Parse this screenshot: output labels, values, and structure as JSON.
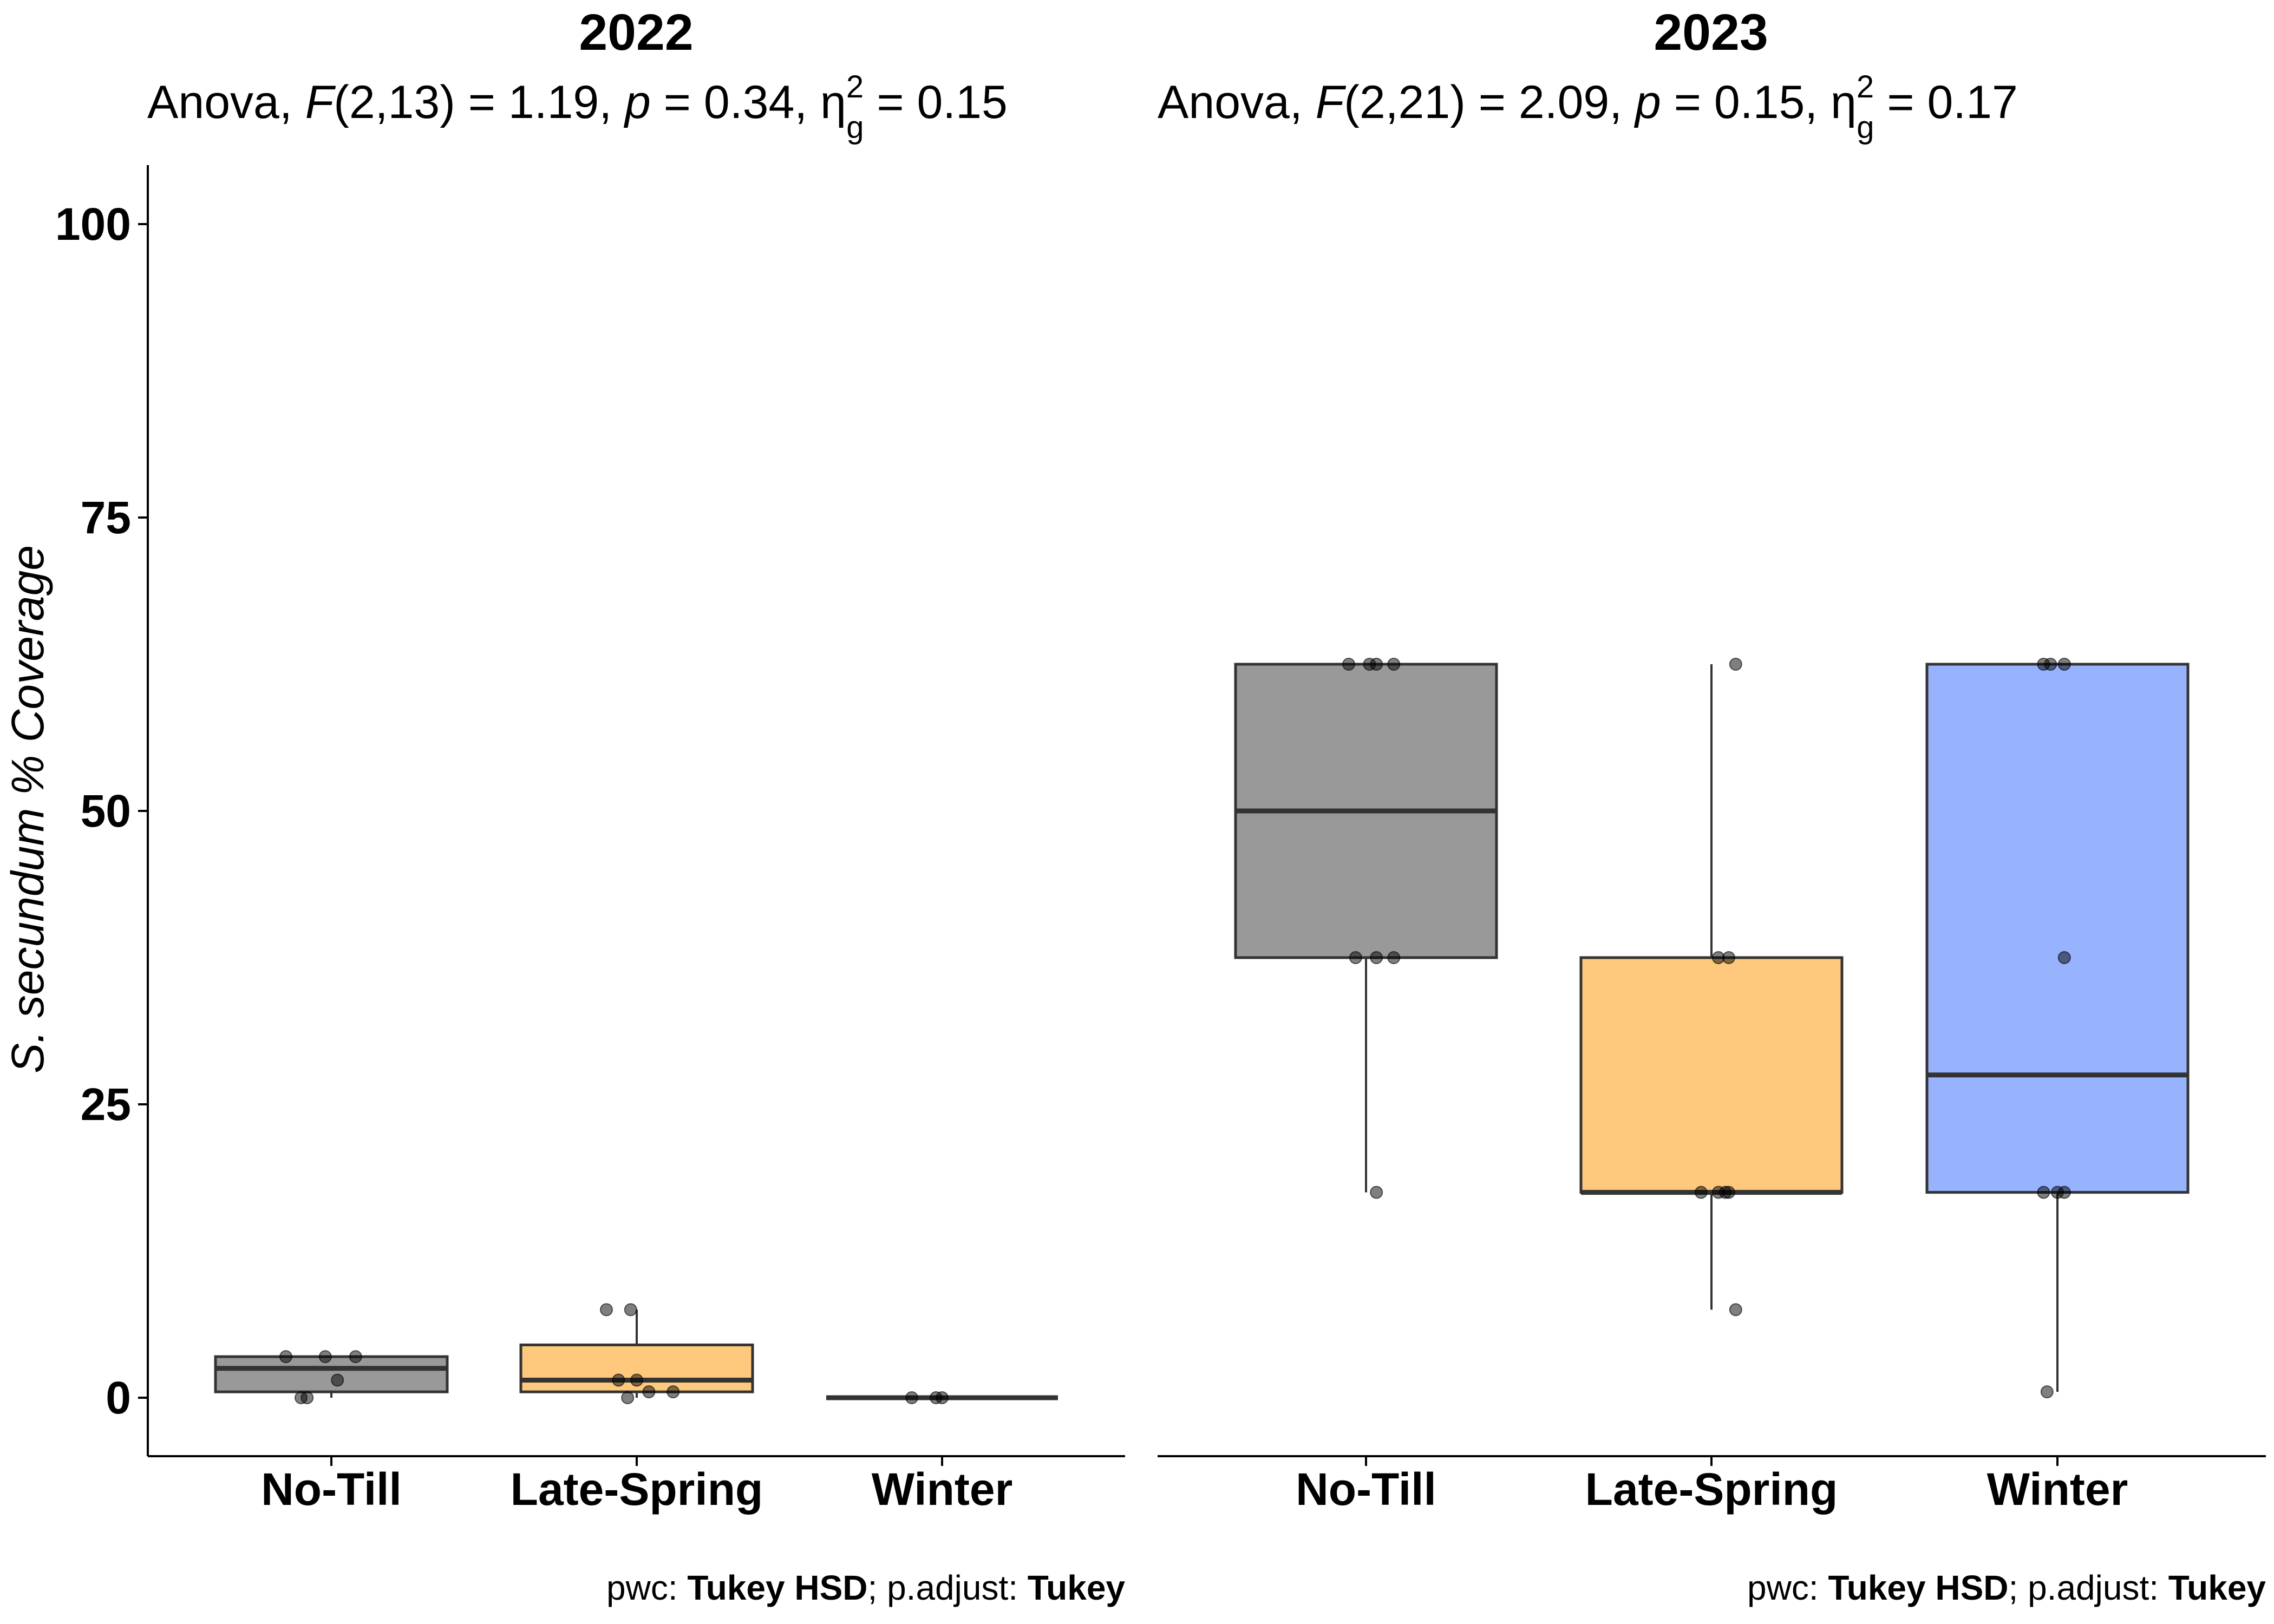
{
  "chart_data": [
    {
      "type": "box",
      "title": "2022",
      "subtitle": {
        "prefix": "Anova, ",
        "F_symbol": "F",
        "df": "(2,13)",
        "F_value": " = 1.19, ",
        "p_symbol": "p",
        "p_value": " = 0.34, ",
        "effect_symbol": "η",
        "effect_sup": "2",
        "effect_sub": "g",
        "effect_value": " = 0.15"
      },
      "caption": {
        "pwc_label": "pwc: ",
        "pwc_value": "Tukey HSD",
        "sep": "; p.adjust: ",
        "adjust_value": "Tukey"
      },
      "ylabel": {
        "species": "S. secundum",
        "rest": " % Coverage"
      },
      "ylim": [
        -10,
        105
      ],
      "yticks": [
        "0",
        "25",
        "50",
        "75",
        "100"
      ],
      "categories": [
        "No-Till",
        "Late-Spring",
        "Winter"
      ],
      "boxes": [
        {
          "category": "No-Till",
          "color": "#999999",
          "q1": 0.5,
          "median": 2.5,
          "q3": 3.5,
          "whisker_low": 0,
          "whisker_high": 3.5,
          "points": [
            [
              -0.15,
              3.5
            ],
            [
              -0.02,
              3.5
            ],
            [
              0.08,
              3.5
            ],
            [
              -0.1,
              0
            ],
            [
              -0.08,
              0
            ],
            [
              0.02,
              1.5
            ]
          ]
        },
        {
          "category": "Late-Spring",
          "color": "#fec97d",
          "q1": 0.5,
          "median": 1.5,
          "q3": 4.5,
          "whisker_low": 0,
          "whisker_high": 7.5,
          "points": [
            [
              -0.1,
              7.5
            ],
            [
              -0.02,
              7.5
            ],
            [
              -0.06,
              1.5
            ],
            [
              0.0,
              1.5
            ],
            [
              -0.03,
              0
            ],
            [
              0.04,
              0.5
            ],
            [
              0.12,
              0.5
            ]
          ]
        },
        {
          "category": "Winter",
          "color": "#999999",
          "q1": 0,
          "median": 0,
          "q3": 0,
          "whisker_low": 0,
          "whisker_high": 0,
          "points": [
            [
              -0.1,
              0
            ],
            [
              -0.02,
              0
            ],
            [
              0.0,
              0
            ]
          ]
        }
      ]
    },
    {
      "type": "box",
      "title": "2023",
      "subtitle": {
        "prefix": "Anova, ",
        "F_symbol": "F",
        "df": "(2,21)",
        "F_value": " = 2.09, ",
        "p_symbol": "p",
        "p_value": " = 0.15, ",
        "effect_symbol": "η",
        "effect_sup": "2",
        "effect_sub": "g",
        "effect_value": " = 0.17"
      },
      "caption": {
        "pwc_label": "pwc: ",
        "pwc_value": "Tukey HSD",
        "sep": "; p.adjust: ",
        "adjust_value": "Tukey"
      },
      "ylim": [
        -10,
        105
      ],
      "categories": [
        "No-Till",
        "Late-Spring",
        "Winter"
      ],
      "boxes": [
        {
          "category": "No-Till",
          "color": "#999999",
          "q1": 37.5,
          "median": 50,
          "q3": 62.5,
          "whisker_low": 17.5,
          "whisker_high": 62.5,
          "points": [
            [
              -0.05,
              62.5
            ],
            [
              0.01,
              62.5
            ],
            [
              0.03,
              62.5
            ],
            [
              0.08,
              62.5
            ],
            [
              -0.03,
              37.5
            ],
            [
              0.03,
              37.5
            ],
            [
              0.08,
              37.5
            ],
            [
              0.03,
              17.5
            ]
          ]
        },
        {
          "category": "Late-Spring",
          "color": "#fec97d",
          "q1": 17.5,
          "median": 17.5,
          "q3": 37.5,
          "whisker_low": 7.5,
          "whisker_high": 62.5,
          "points": [
            [
              0.07,
              62.5
            ],
            [
              0.02,
              37.5
            ],
            [
              0.05,
              37.5
            ],
            [
              -0.03,
              17.5
            ],
            [
              0.02,
              17.5
            ],
            [
              0.04,
              17.5
            ],
            [
              0.05,
              17.5
            ],
            [
              0.07,
              7.5
            ]
          ]
        },
        {
          "category": "Winter",
          "color": "#97b3fe",
          "q1": 17.5,
          "median": 27.5,
          "q3": 62.5,
          "whisker_low": 0.5,
          "whisker_high": 62.5,
          "points": [
            [
              -0.04,
              62.5
            ],
            [
              -0.02,
              62.5
            ],
            [
              0.02,
              62.5
            ],
            [
              0.02,
              37.5
            ],
            [
              -0.04,
              17.5
            ],
            [
              0.0,
              17.5
            ],
            [
              0.02,
              17.5
            ],
            [
              -0.03,
              0.5
            ]
          ]
        }
      ]
    }
  ]
}
